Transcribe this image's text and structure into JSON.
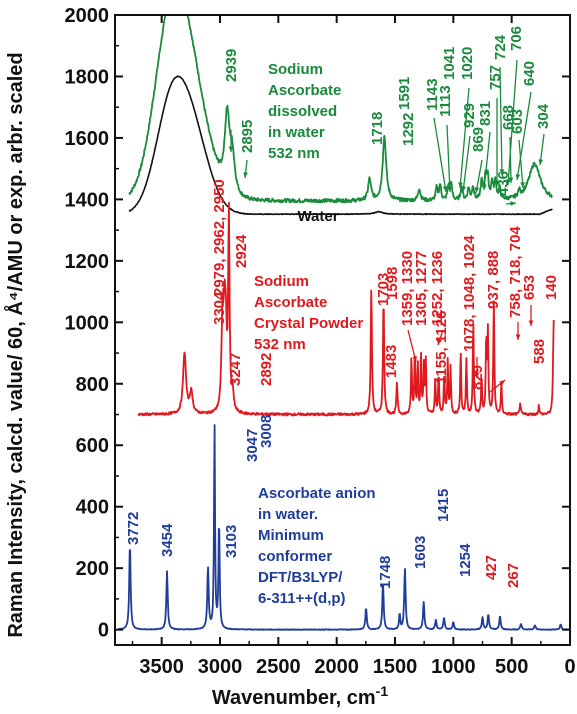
{
  "chart_data": {
    "type": "line",
    "xlabel": "Wavenumber, cm",
    "xlabel_sup": "-1",
    "ylabel": "Raman Intensity, calcd. value/ 60, Å⁴/AMU or exp. arbr. scaled",
    "xlim": [
      3900,
      0
    ],
    "ylim": [
      -50,
      2000
    ],
    "x_ticks": [
      3500,
      3000,
      2500,
      2000,
      1500,
      1000,
      500,
      0
    ],
    "y_ticks": [
      0,
      200,
      400,
      600,
      800,
      1000,
      1200,
      1400,
      1600,
      1800,
      2000
    ],
    "grid": false,
    "series": [
      {
        "name": "Sodium Ascorbate dissolved in water 532 nm",
        "color": "#1a8a3c",
        "baseline": 1395,
        "broad_bands": [
          {
            "x": 3430,
            "height": 505,
            "width": 140
          },
          {
            "x": 3250,
            "height": 330,
            "width": 150
          }
        ],
        "peaks": [
          {
            "x": 2939,
            "height": 240,
            "width": 25
          },
          {
            "x": 2895,
            "height": 120,
            "width": 25
          },
          {
            "x": 1718,
            "height": 70,
            "width": 15
          },
          {
            "x": 1591,
            "height": 210,
            "width": 18
          },
          {
            "x": 1292,
            "height": 40,
            "width": 12
          },
          {
            "x": 1143,
            "height": 40,
            "width": 10
          },
          {
            "x": 1113,
            "height": 50,
            "width": 10
          },
          {
            "x": 1041,
            "height": 45,
            "width": 10
          },
          {
            "x": 1020,
            "height": 55,
            "width": 10
          },
          {
            "x": 929,
            "height": 45,
            "width": 10
          },
          {
            "x": 869,
            "height": 40,
            "width": 10
          },
          {
            "x": 831,
            "height": 45,
            "width": 10
          },
          {
            "x": 757,
            "height": 60,
            "width": 10
          },
          {
            "x": 724,
            "height": 75,
            "width": 10
          },
          {
            "x": 706,
            "height": 70,
            "width": 10
          },
          {
            "x": 668,
            "height": 55,
            "width": 10
          },
          {
            "x": 640,
            "height": 60,
            "width": 10
          },
          {
            "x": 603,
            "height": 35,
            "width": 10
          },
          {
            "x": 436,
            "height": 20,
            "width": 10
          },
          {
            "x": 304,
            "height": 120,
            "width": 60
          }
        ]
      },
      {
        "name": "Water",
        "color": "#111111",
        "baseline": 1352,
        "broad_bands": [
          {
            "x": 3420,
            "height": 330,
            "width": 135
          },
          {
            "x": 3230,
            "height": 230,
            "width": 140
          }
        ],
        "peaks": [
          {
            "x": 1640,
            "height": 8,
            "width": 40
          }
        ]
      },
      {
        "name": "Sodium Ascorbate Crystal Powder 532 nm",
        "color": "#e0191e",
        "baseline": 700,
        "peaks": [
          {
            "x": 3304,
            "height": 200,
            "width": 15
          },
          {
            "x": 3247,
            "height": 70,
            "width": 15
          },
          {
            "x": 2979,
            "height": 280,
            "width": 10
          },
          {
            "x": 2962,
            "height": 250,
            "width": 10
          },
          {
            "x": 2950,
            "height": 220,
            "width": 10
          },
          {
            "x": 2924,
            "height": 630,
            "width": 7
          },
          {
            "x": 2892,
            "height": 60,
            "width": 10
          },
          {
            "x": 1703,
            "height": 410,
            "width": 6
          },
          {
            "x": 1598,
            "height": 380,
            "width": 6
          },
          {
            "x": 1483,
            "height": 100,
            "width": 6
          },
          {
            "x": 1359,
            "height": 180,
            "width": 5
          },
          {
            "x": 1330,
            "height": 200,
            "width": 5
          },
          {
            "x": 1305,
            "height": 160,
            "width": 5
          },
          {
            "x": 1277,
            "height": 190,
            "width": 5
          },
          {
            "x": 1252,
            "height": 150,
            "width": 5
          },
          {
            "x": 1236,
            "height": 170,
            "width": 5
          },
          {
            "x": 1155,
            "height": 110,
            "width": 5
          },
          {
            "x": 1126,
            "height": 130,
            "width": 5
          },
          {
            "x": 1078,
            "height": 130,
            "width": 5
          },
          {
            "x": 1048,
            "height": 170,
            "width": 5
          },
          {
            "x": 1024,
            "height": 150,
            "width": 5
          },
          {
            "x": 937,
            "height": 200,
            "width": 5
          },
          {
            "x": 888,
            "height": 180,
            "width": 5
          },
          {
            "x": 829,
            "height": 300,
            "width": 5
          },
          {
            "x": 758,
            "height": 120,
            "width": 5
          },
          {
            "x": 718,
            "height": 240,
            "width": 5
          },
          {
            "x": 704,
            "height": 260,
            "width": 5
          },
          {
            "x": 653,
            "height": 380,
            "width": 5
          },
          {
            "x": 588,
            "height": 100,
            "width": 5
          },
          {
            "x": 427,
            "height": 40,
            "width": 5
          },
          {
            "x": 267,
            "height": 30,
            "width": 5
          },
          {
            "x": 140,
            "height": 310,
            "width": 6
          }
        ]
      },
      {
        "name": "Ascorbate anion in water. Minimum conformer DFT/B3LYP/ 6-311++(d,p)",
        "color": "#1f3d99",
        "baseline": 0,
        "peaks": [
          {
            "x": 3772,
            "height": 280,
            "width": 7
          },
          {
            "x": 3454,
            "height": 190,
            "width": 7
          },
          {
            "x": 3103,
            "height": 200,
            "width": 7
          },
          {
            "x": 3047,
            "height": 680,
            "width": 5
          },
          {
            "x": 3008,
            "height": 350,
            "width": 6
          },
          {
            "x": 1748,
            "height": 70,
            "width": 7
          },
          {
            "x": 1603,
            "height": 150,
            "width": 7
          },
          {
            "x": 1460,
            "height": 50,
            "width": 6
          },
          {
            "x": 1415,
            "height": 200,
            "width": 7
          },
          {
            "x": 1254,
            "height": 90,
            "width": 7
          },
          {
            "x": 1150,
            "height": 30,
            "width": 7
          },
          {
            "x": 1080,
            "height": 40,
            "width": 7
          },
          {
            "x": 1000,
            "height": 25,
            "width": 7
          },
          {
            "x": 750,
            "height": 40,
            "width": 7
          },
          {
            "x": 700,
            "height": 50,
            "width": 7
          },
          {
            "x": 600,
            "height": 45,
            "width": 7
          },
          {
            "x": 420,
            "height": 20,
            "width": 7
          },
          {
            "x": 300,
            "height": 15,
            "width": 7
          },
          {
            "x": 80,
            "height": 18,
            "width": 7
          }
        ]
      }
    ],
    "annotations": {
      "green": [
        "2939",
        "2895",
        "1718",
        "1591",
        "1292",
        "1143",
        "1113",
        "1041",
        "1020",
        "929",
        "869",
        "831",
        "757",
        "724",
        "706",
        "668",
        "640",
        "603",
        "436",
        "304"
      ],
      "red": [
        "3304",
        "3247",
        "2979, 2962, 2950",
        "2924",
        "2892",
        "1703",
        "1598",
        "1483",
        "1359, 1330",
        "1305, 1277",
        "1252, 1236",
        "1155, 1126",
        "1078, 1048, 1024",
        "937, 888",
        "829",
        "758, 718, 704",
        "653",
        "588",
        "427",
        "267",
        "140"
      ],
      "blue": [
        "3772",
        "3454",
        "3103",
        "3047",
        "3008",
        "1748",
        "1603",
        "1415",
        "1254"
      ]
    },
    "legend_texts": {
      "green": [
        "Sodium",
        "Ascorbate",
        "dissolved",
        "in water",
        "532 nm"
      ],
      "red": [
        "Sodium",
        "Ascorbate",
        "Crystal Powder",
        "532 nm"
      ],
      "blue": [
        "Ascorbate anion",
        "in water.",
        "Minimum",
        "conformer",
        "DFT/B3LYP/",
        "6-311++(d,p)"
      ],
      "water": "Water"
    }
  }
}
